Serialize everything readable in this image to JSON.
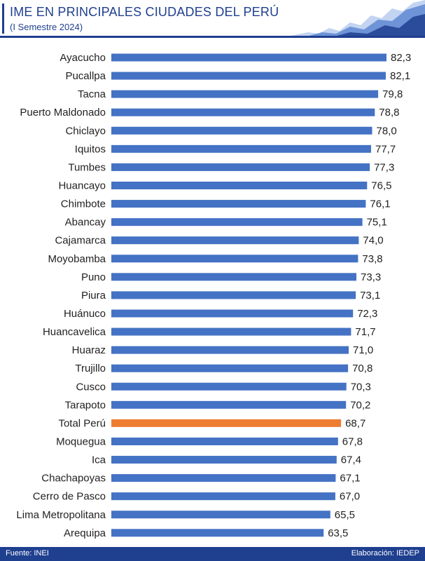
{
  "header": {
    "title": "IME EN PRINCIPALES CIUDADES DEL PERÚ",
    "subtitle": "(I Semestre 2024)"
  },
  "footer": {
    "source": "Fuente: INEI",
    "credit": "Elaboración: IEDEP"
  },
  "colors": {
    "bar": "#4472c4",
    "highlight": "#ed7d31",
    "brand": "#1f3f8f"
  },
  "chart_data": {
    "type": "bar",
    "orientation": "horizontal",
    "categories": [
      "Ayacucho",
      "Pucallpa",
      "Tacna",
      "Puerto Maldonado",
      "Chiclayo",
      "Iquitos",
      "Tumbes",
      "Huancayo",
      "Chimbote",
      "Abancay",
      "Cajamarca",
      "Moyobamba",
      "Puno",
      "Piura",
      "Huánuco",
      "Huancavelica",
      "Huaraz",
      "Trujillo",
      "Cusco",
      "Tarapoto",
      "Total Perú",
      "Moquegua",
      "Ica",
      "Chachapoyas",
      "Cerro de Pasco",
      "Lima Metropolitana",
      "Arequipa"
    ],
    "values": [
      82.3,
      82.1,
      79.8,
      78.8,
      78.0,
      77.7,
      77.3,
      76.5,
      76.1,
      75.1,
      74.0,
      73.8,
      73.3,
      73.1,
      72.3,
      71.7,
      71.0,
      70.8,
      70.3,
      70.2,
      68.7,
      67.8,
      67.4,
      67.1,
      67.0,
      65.5,
      63.5
    ],
    "value_labels": [
      "82,3",
      "82,1",
      "79,8",
      "78,8",
      "78,0",
      "77,7",
      "77,3",
      "76,5",
      "76,1",
      "75,1",
      "74,0",
      "73,8",
      "73,3",
      "73,1",
      "72,3",
      "71,7",
      "71,0",
      "70,8",
      "70,3",
      "70,2",
      "68,7",
      "67,8",
      "67,4",
      "67,1",
      "67,0",
      "65,5",
      "63,5"
    ],
    "highlight_category": "Total Perú",
    "xlim": [
      0,
      82.3
    ],
    "grid": false,
    "legend": "none"
  }
}
